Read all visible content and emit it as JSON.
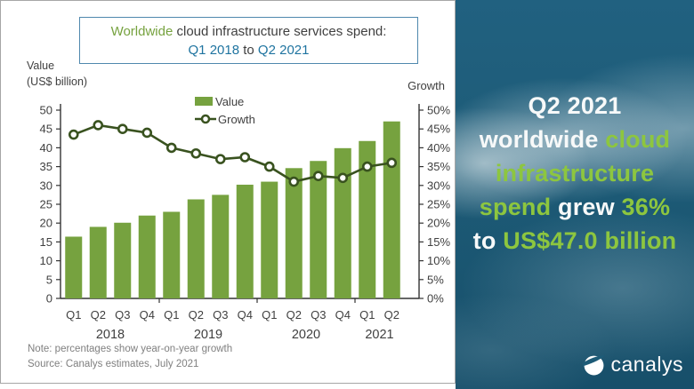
{
  "colors": {
    "bar": "#76a23f",
    "line": "#39521f",
    "marker_fill": "#ffffff",
    "axis": "#333333",
    "axis_text": "#404040",
    "note_text": "#7f7f7f",
    "title_green": "#76a23f",
    "title_blue": "#1f74a0",
    "box_border": "#4f88ad",
    "card_border": "#a6a6a6",
    "panel_bg": "#1d5b77",
    "panel_green": "#8dc63f",
    "panel_white": "#f7f9f9"
  },
  "card": {
    "title": {
      "lead_green": "Worldwide",
      "lead_rest": " cloud infrastructure services spend:",
      "range_start": "Q1 2018",
      "range_mid": " to ",
      "range_end": "Q2 2021"
    },
    "left_axis_title_line1": "Value",
    "left_axis_title_line2": "(US$ billion)",
    "right_axis_title": "Growth",
    "legend": {
      "value_label": "Value",
      "growth_label": "Growth"
    },
    "notes": [
      "Note: percentages show year-on-year growth",
      "Source: Canalys estimates, July 2021"
    ]
  },
  "chart_data": {
    "type": "bar",
    "title": "Worldwide cloud infrastructure services spend: Q1 2018 to Q2 2021",
    "categories": [
      "Q1",
      "Q2",
      "Q3",
      "Q4",
      "Q1",
      "Q2",
      "Q3",
      "Q4",
      "Q1",
      "Q2",
      "Q3",
      "Q4",
      "Q1",
      "Q2"
    ],
    "year_groups": [
      {
        "label": "2018",
        "span": 4
      },
      {
        "label": "2019",
        "span": 4
      },
      {
        "label": "2020",
        "span": 4
      },
      {
        "label": "2021",
        "span": 2
      }
    ],
    "series": [
      {
        "name": "Value",
        "type": "bar",
        "axis": "left",
        "values": [
          16.4,
          19.0,
          20.1,
          22.0,
          23.0,
          26.3,
          27.5,
          30.2,
          31.0,
          34.6,
          36.5,
          39.9,
          41.8,
          47.0
        ]
      },
      {
        "name": "Growth",
        "type": "line",
        "axis": "right",
        "values": [
          43.5,
          46.0,
          45.0,
          44.0,
          40.0,
          38.5,
          37.0,
          37.5,
          35.0,
          31.0,
          32.5,
          32.0,
          35.0,
          36.0
        ]
      }
    ],
    "ylabel": "Value (US$ billion)",
    "y2label": "Growth",
    "left_axis": {
      "min": 0,
      "max": 50,
      "step": 5
    },
    "right_axis": {
      "min": 0,
      "max": 50,
      "step": 5,
      "suffix": "%"
    },
    "grid": false,
    "legend_position": "top-inside"
  },
  "panel": {
    "headline_lines": [
      [
        {
          "text": "Q2 2021",
          "color": "white"
        }
      ],
      [
        {
          "text": "worldwide ",
          "color": "white"
        },
        {
          "text": "cloud",
          "color": "green"
        }
      ],
      [
        {
          "text": "infrastructure",
          "color": "green"
        }
      ],
      [
        {
          "text": "spend ",
          "color": "green"
        },
        {
          "text": "grew ",
          "color": "white"
        },
        {
          "text": "36%",
          "color": "green"
        }
      ],
      [
        {
          "text": "to ",
          "color": "white"
        },
        {
          "text": "US$47.0 billion",
          "color": "green"
        }
      ]
    ],
    "logo_text": "canalys"
  }
}
